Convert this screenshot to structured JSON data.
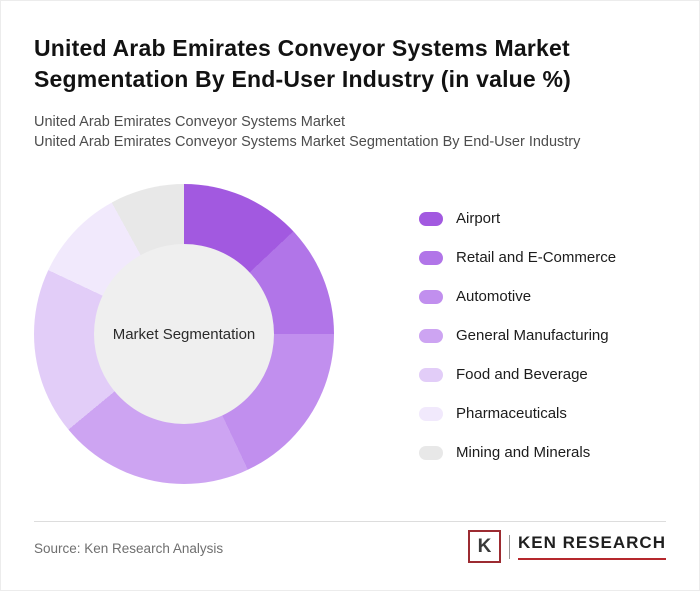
{
  "header": {
    "title": "United Arab Emirates Conveyor Systems Market Segmentation By End-User Industry (in value %)",
    "subtitle_line1": "United Arab Emirates Conveyor Systems Market",
    "subtitle_line2": "United Arab Emirates Conveyor Systems Market Segmentation By End-User Industry"
  },
  "chart_data": {
    "type": "pie",
    "subtype": "donut",
    "title": "United Arab Emirates Conveyor Systems Market Segmentation By End-User Industry (in value %)",
    "center_label": "Market Segmentation",
    "categories": [
      "Airport",
      "Retail and E-Commerce",
      "Automotive",
      "General Manufacturing",
      "Food and Beverage",
      "Pharmaceuticals",
      "Mining and Minerals"
    ],
    "values": [
      13,
      12,
      18,
      21,
      18,
      10,
      8
    ],
    "colors": [
      "#a259e0",
      "#b175e8",
      "#c18fee",
      "#cda4f2",
      "#e2cdf8",
      "#f1e9fc",
      "#e8e8e8"
    ],
    "hole_color": "#efefef",
    "start_angle_deg": 0,
    "direction": "clockwise",
    "legend_position": "right"
  },
  "footer": {
    "source": "Source: Ken Research Analysis",
    "logo": {
      "letter": "K",
      "text": "KEN RESEARCH",
      "accent_color": "#b5282d"
    }
  }
}
